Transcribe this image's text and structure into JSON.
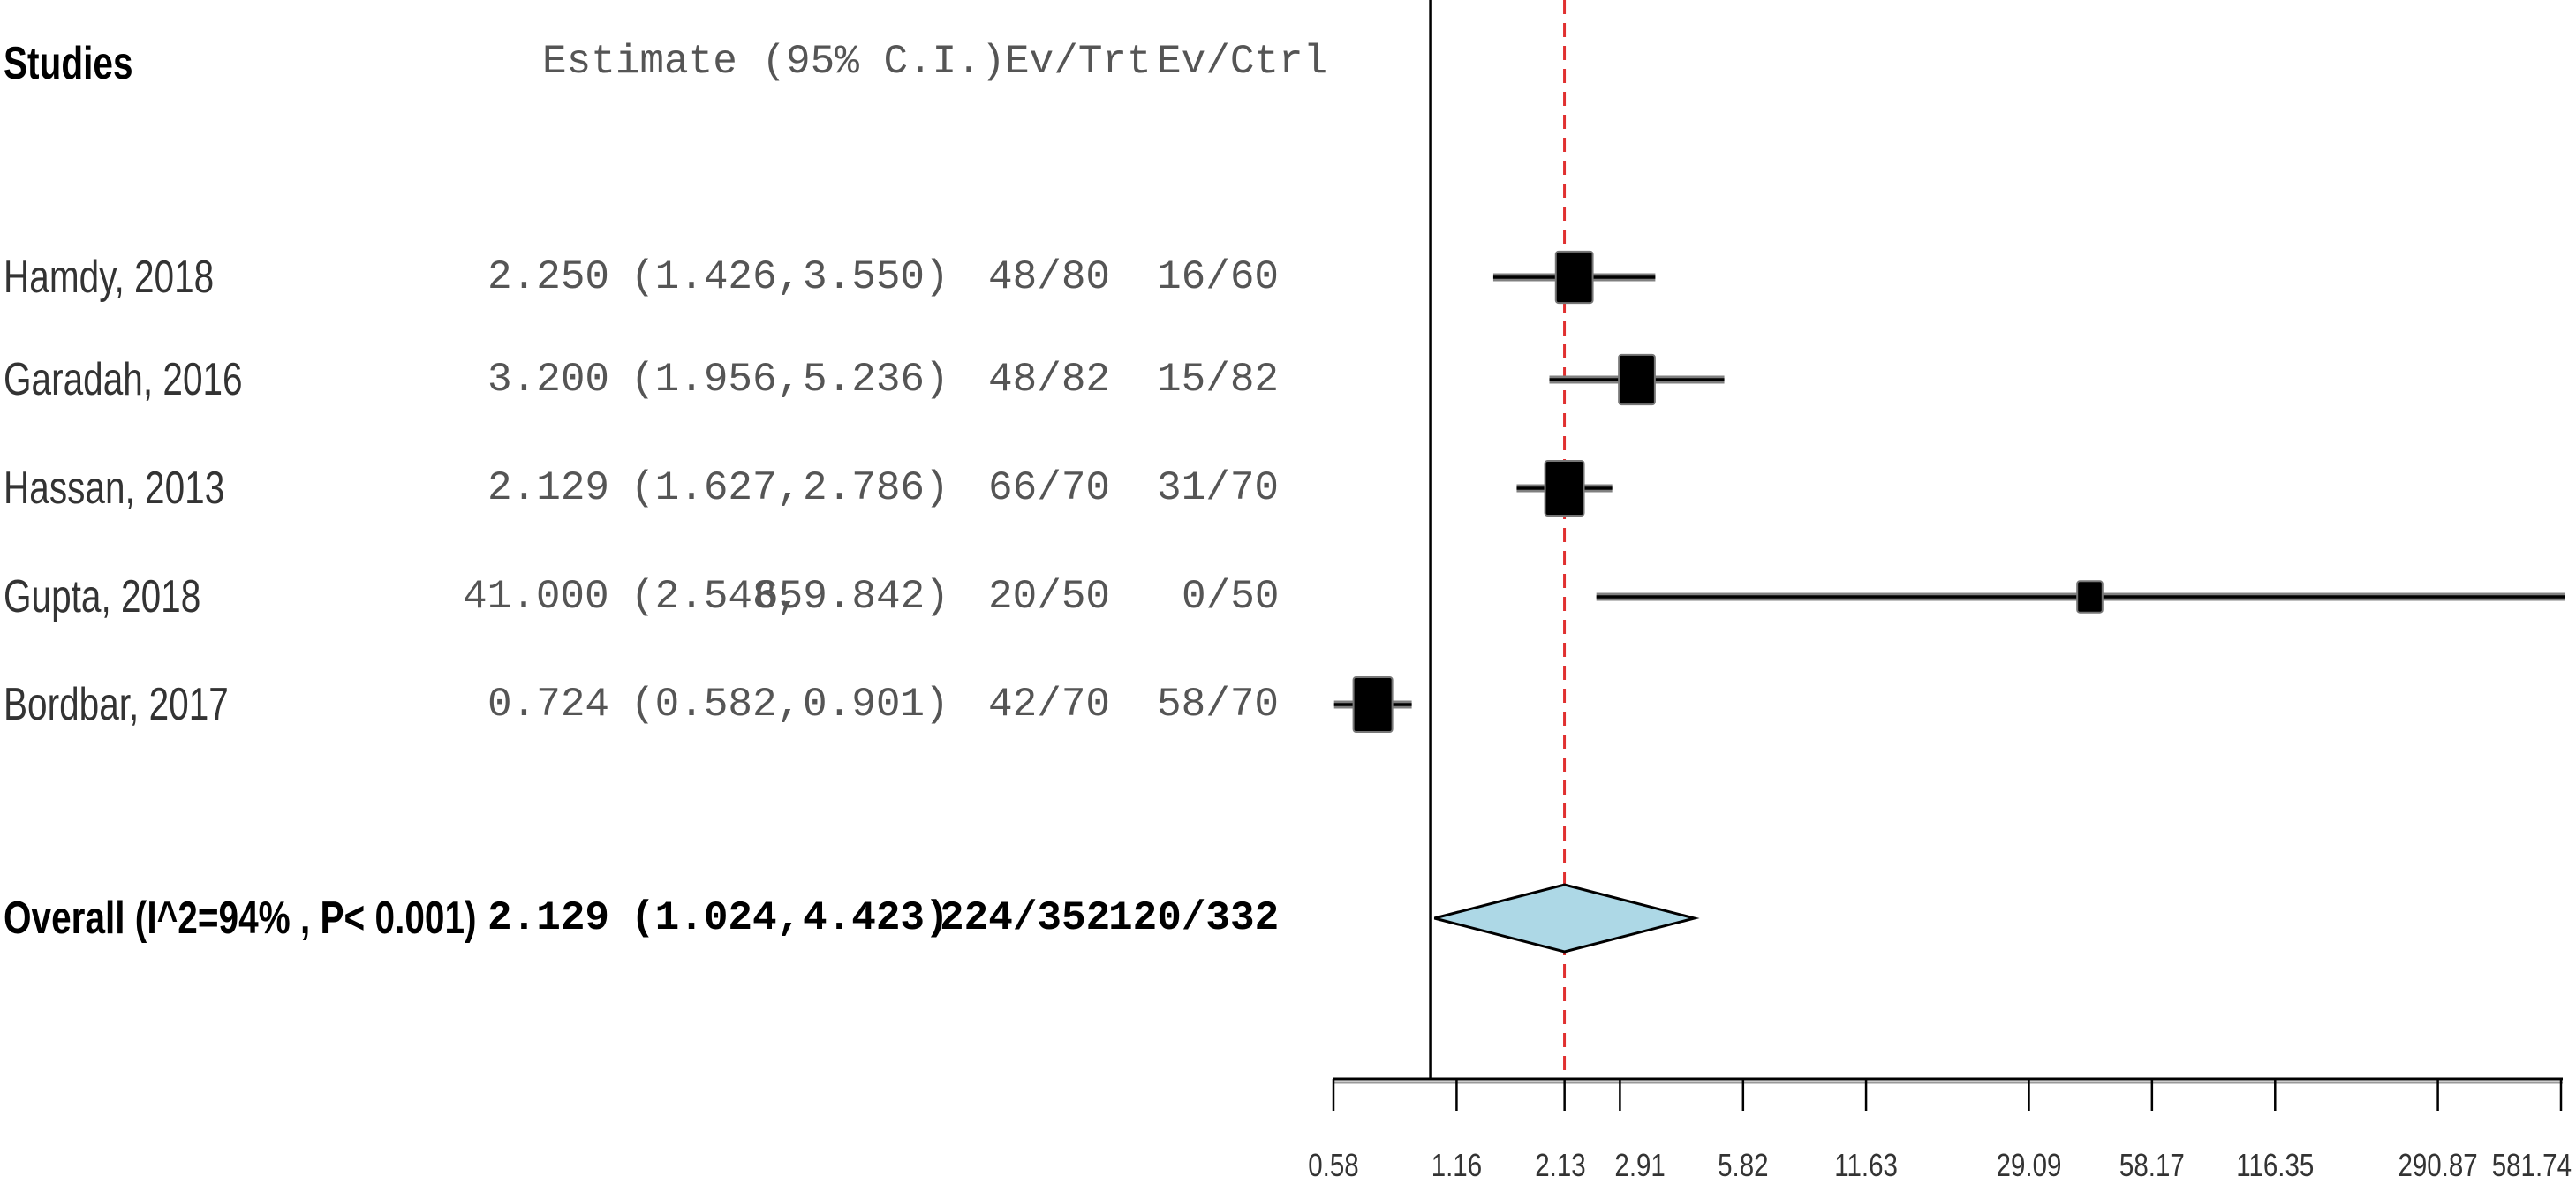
{
  "headers": {
    "studies": "Studies",
    "estimate": "Estimate (95% C.I.)",
    "ev_trt": "Ev/Trt",
    "ev_ctrl": "Ev/Ctrl"
  },
  "chart_data": {
    "type": "forest",
    "x_scale": "log",
    "x_ticks": [
      0.58,
      1.16,
      2.13,
      2.91,
      5.82,
      11.63,
      29.09,
      58.17,
      116.35,
      290.87,
      581.74
    ],
    "x_tick_labels": [
      "0.58",
      "1.16",
      "2.13",
      "2.91",
      "5.82",
      "11.63",
      "29.09",
      "58.17",
      "116.35",
      "290.87",
      "581.74"
    ],
    "xlim": [
      0.58,
      581.74
    ],
    "null_line": 1,
    "pooled_line": 2.129,
    "studies": [
      {
        "name": "Hamdy, 2018",
        "estimate": 2.25,
        "lower": 1.426,
        "upper": 3.55,
        "estimate_text": "2.250",
        "lower_text": "(1.426,",
        "upper_text": "3.550)",
        "ev_trt": "48/80",
        "ev_ctrl": "16/60",
        "weight": 0.9
      },
      {
        "name": "Garadah, 2016",
        "estimate": 3.2,
        "lower": 1.956,
        "upper": 5.236,
        "estimate_text": "3.200",
        "lower_text": "(1.956,",
        "upper_text": "5.236)",
        "ev_trt": "48/82",
        "ev_ctrl": "15/82",
        "weight": 0.85
      },
      {
        "name": "Hassan, 2013",
        "estimate": 2.129,
        "lower": 1.627,
        "upper": 2.786,
        "estimate_text": "2.129",
        "lower_text": "(1.627,",
        "upper_text": "2.786)",
        "ev_trt": "66/70",
        "ev_ctrl": "31/70",
        "weight": 1.0
      },
      {
        "name": "Gupta, 2018",
        "estimate": 41.0,
        "lower": 2.548,
        "upper": 659.842,
        "estimate_text": "41.000",
        "lower_text": "(2.548,",
        "upper_text": "659.842)",
        "ev_trt": "20/50",
        "ev_ctrl": "0/50",
        "weight": 0.3
      },
      {
        "name": "Bordbar, 2017",
        "estimate": 0.724,
        "lower": 0.582,
        "upper": 0.901,
        "estimate_text": "0.724",
        "lower_text": "(0.582,",
        "upper_text": "0.901)",
        "ev_trt": "42/70",
        "ev_ctrl": "58/70",
        "weight": 1.0
      }
    ],
    "overall": {
      "name": "Overall (I^2=94% , P< 0.001)",
      "estimate": 2.129,
      "lower": 1.024,
      "upper": 4.423,
      "estimate_text": "2.129",
      "lower_text": "(1.024,",
      "upper_text": "4.423)",
      "ev_trt": "224/352",
      "ev_ctrl": "120/332"
    },
    "colors": {
      "box": "#000000",
      "diamond_fill": "#add8e6",
      "pooled_line": "#e03030",
      "whisker_grey": "#808080"
    }
  }
}
